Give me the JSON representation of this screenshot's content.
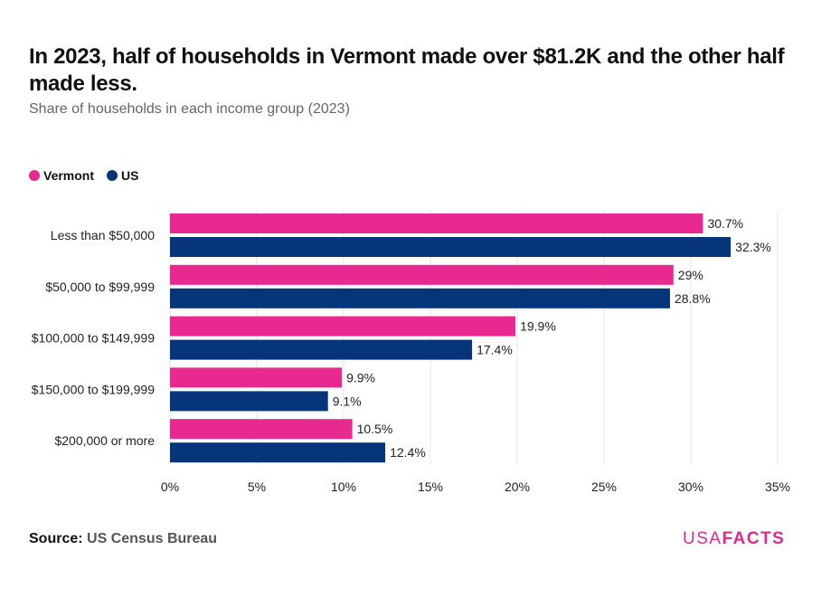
{
  "title": "In 2023, half of households in Vermont made over $81.2K and the other half made less.",
  "subtitle": "Share of households in each income group (2023)",
  "colors": {
    "vermont": "#e8298f",
    "us": "#06357a"
  },
  "source": {
    "label": "Source:",
    "text": "US Census Bureau"
  },
  "logo": {
    "part1": "USA",
    "part2": "FACTS"
  },
  "chart_data": {
    "type": "bar",
    "orientation": "horizontal",
    "categories": [
      "Less than $50,000",
      "$50,000 to $99,999",
      "$100,000 to $149,999",
      "$150,000 to $199,999",
      "$200,000 or more"
    ],
    "series": [
      {
        "name": "Vermont",
        "values": [
          30.7,
          29,
          19.9,
          9.9,
          10.5
        ],
        "labels": [
          "30.7%",
          "29%",
          "19.9%",
          "9.9%",
          "10.5%"
        ]
      },
      {
        "name": "US",
        "values": [
          32.3,
          28.8,
          17.4,
          9.1,
          12.4
        ],
        "labels": [
          "32.3%",
          "28.8%",
          "17.4%",
          "9.1%",
          "12.4%"
        ]
      }
    ],
    "xlim": [
      0,
      35
    ],
    "xticks": [
      0,
      5,
      10,
      15,
      20,
      25,
      30,
      35
    ],
    "xtick_labels": [
      "0%",
      "5%",
      "10%",
      "15%",
      "20%",
      "25%",
      "30%",
      "35%"
    ],
    "grid": true,
    "legend_position": "top-left"
  }
}
